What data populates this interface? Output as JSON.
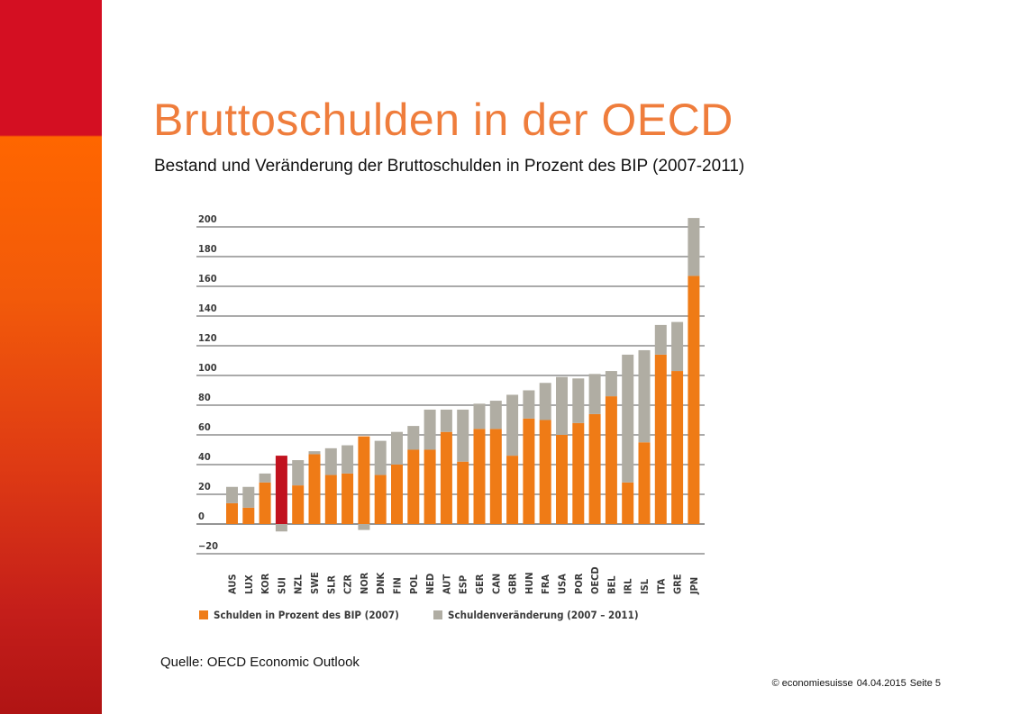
{
  "slide": {
    "title": "Bruttoschulden in der OECD",
    "subtitle": "Bestand und Veränderung der Bruttoschulden in Prozent des BIP (2007-2011)",
    "source": "Quelle: OECD Economic Outlook",
    "footer": {
      "copyright": "© economiesuisse",
      "date": "04.04.2015",
      "page": "Seite 5"
    }
  },
  "colors": {
    "title": "#ef7d3c",
    "band_top": "#d40f22",
    "band_bottom": "#ff6600",
    "stock": "#ef7b16",
    "change": "#b0ada3",
    "highlight": "#c1121f"
  },
  "chart_data": {
    "type": "bar",
    "stacked": true,
    "categories": [
      "AUS",
      "LUX",
      "KOR",
      "SUI",
      "NZL",
      "SWE",
      "SLR",
      "CZR",
      "NOR",
      "DNK",
      "FIN",
      "POL",
      "NED",
      "AUT",
      "ESP",
      "GER",
      "CAN",
      "GBR",
      "HUN",
      "FRA",
      "USA",
      "POR",
      "OECD",
      "BEL",
      "IRL",
      "ISL",
      "ITA",
      "GRE",
      "JPN"
    ],
    "series": [
      {
        "name": "Schulden in Prozent des BIP (2007)",
        "color": "#ef7b16",
        "values": [
          14,
          11,
          28,
          46,
          26,
          47,
          33,
          34,
          59,
          33,
          40,
          50,
          50,
          62,
          42,
          64,
          64,
          46,
          71,
          70,
          60,
          68,
          74,
          86,
          28,
          55,
          114,
          103,
          167
        ]
      },
      {
        "name": "Schuldenveränderung (2007 – 2011)",
        "color": "#b0ada3",
        "values": [
          11,
          14,
          6,
          -5,
          17,
          2,
          18,
          19,
          -4,
          23,
          22,
          16,
          27,
          15,
          35,
          17,
          19,
          41,
          19,
          25,
          39,
          30,
          27,
          17,
          86,
          62,
          20,
          33,
          39
        ]
      }
    ],
    "highlight_category": "SUI",
    "yticks": [
      -20,
      0,
      20,
      40,
      60,
      80,
      100,
      120,
      140,
      160,
      180,
      200
    ],
    "ylim": [
      -20,
      206
    ],
    "grid": true,
    "legend_position": "bottom"
  }
}
